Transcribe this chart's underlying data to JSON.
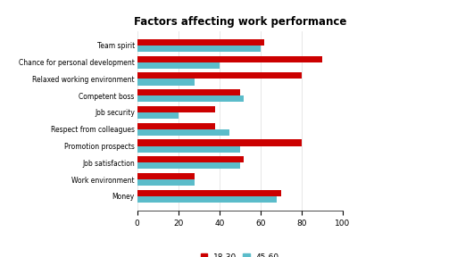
{
  "title": "Factors affecting work performance",
  "categories": [
    "Money",
    "Work environment",
    "Job satisfaction",
    "Promotion prospects",
    "Respect from colleagues",
    "Job security",
    "Competent boss",
    "Relaxed working environment",
    "Chance for personal development",
    "Team spirit"
  ],
  "values_18_30": [
    70,
    28,
    52,
    80,
    38,
    38,
    50,
    80,
    90,
    62
  ],
  "values_45_60": [
    68,
    28,
    50,
    50,
    45,
    20,
    52,
    28,
    40,
    60
  ],
  "color_18_30": "#cc0000",
  "color_45_60": "#5bbcca",
  "xlim": [
    0,
    100
  ],
  "xticks": [
    0,
    20,
    40,
    60,
    80,
    100
  ],
  "legend_18_30": "18-30",
  "legend_45_60": "45-60"
}
